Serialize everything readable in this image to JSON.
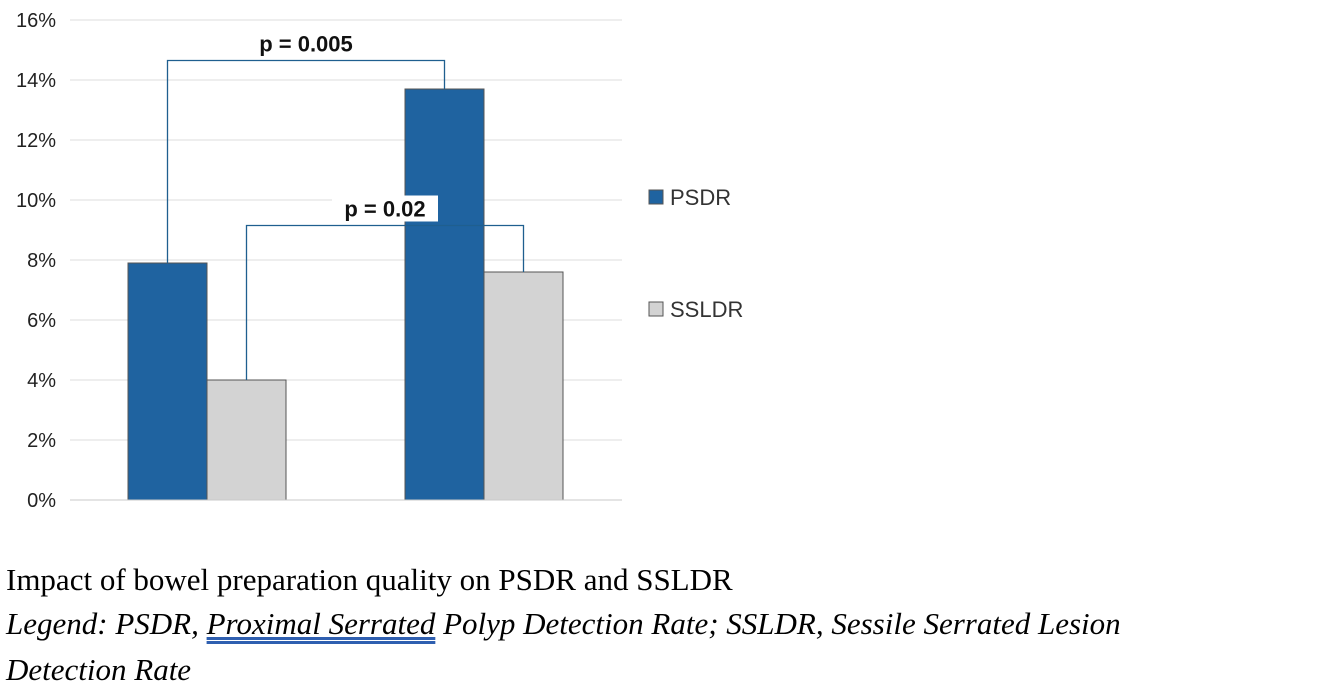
{
  "chart_data": {
    "type": "bar",
    "categories": [
      "",
      ""
    ],
    "series": [
      {
        "name": "PSDR",
        "values": [
          7.9,
          13.7
        ],
        "color": "#1f63a0"
      },
      {
        "name": "SSLDR",
        "values": [
          4.0,
          7.6
        ],
        "color": "#d3d3d3"
      }
    ],
    "ylim": [
      0,
      16
    ],
    "yticks": [
      "0%",
      "2%",
      "4%",
      "6%",
      "8%",
      "10%",
      "12%",
      "14%",
      "16%"
    ],
    "grid": true,
    "legend_position": "right",
    "annotations": [
      {
        "label": "p = 0.005",
        "compares": "PSDR"
      },
      {
        "label": "p = 0.02",
        "compares": "SSLDR"
      }
    ]
  },
  "caption": {
    "title": "Impact of bowel preparation quality on PSDR and SSLDR",
    "legend_prefix": "Legend: PSDR, ",
    "legend_underlined": "Proximal  Serrated",
    "legend_rest": " Polyp Detection Rate; SSLDR, Sessile Serrated Lesion",
    "legend_line2": "Detection Rate"
  }
}
